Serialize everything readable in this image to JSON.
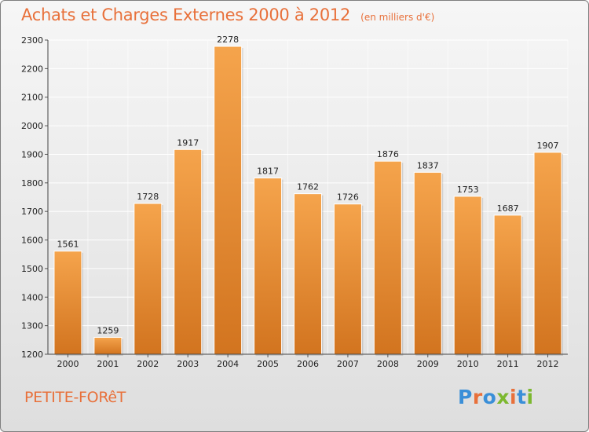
{
  "header": {
    "title": "Achats et Charges Externes 2000 à 2012",
    "unit": "(en milliers d'€)"
  },
  "footer": {
    "commune": "PETITE-FORêT",
    "logo": {
      "text": "Proxiti",
      "letter_colors": [
        "#3a8fd8",
        "#e8703a",
        "#3a8fd8",
        "#7cb82f",
        "#e8703a",
        "#3a8fd8",
        "#7cb82f"
      ]
    }
  },
  "colors": {
    "bar_light": "#f5a44c",
    "bar_dark": "#d2741f",
    "accent": "#e8703a"
  },
  "chart_data": {
    "type": "bar",
    "title": "Achats et Charges Externes 2000 à 2012",
    "subtitle": "(en milliers d'€)",
    "categories": [
      "2000",
      "2001",
      "2002",
      "2003",
      "2004",
      "2005",
      "2006",
      "2007",
      "2008",
      "2009",
      "2010",
      "2011",
      "2012"
    ],
    "values": [
      1561,
      1259,
      1728,
      1917,
      2278,
      1817,
      1762,
      1726,
      1876,
      1837,
      1753,
      1687,
      1907
    ],
    "ylim": [
      1200,
      2300
    ],
    "yticks": [
      1200,
      1300,
      1400,
      1500,
      1600,
      1700,
      1800,
      1900,
      2000,
      2100,
      2200,
      2300
    ],
    "grid": true,
    "xlabel": "",
    "ylabel": ""
  }
}
